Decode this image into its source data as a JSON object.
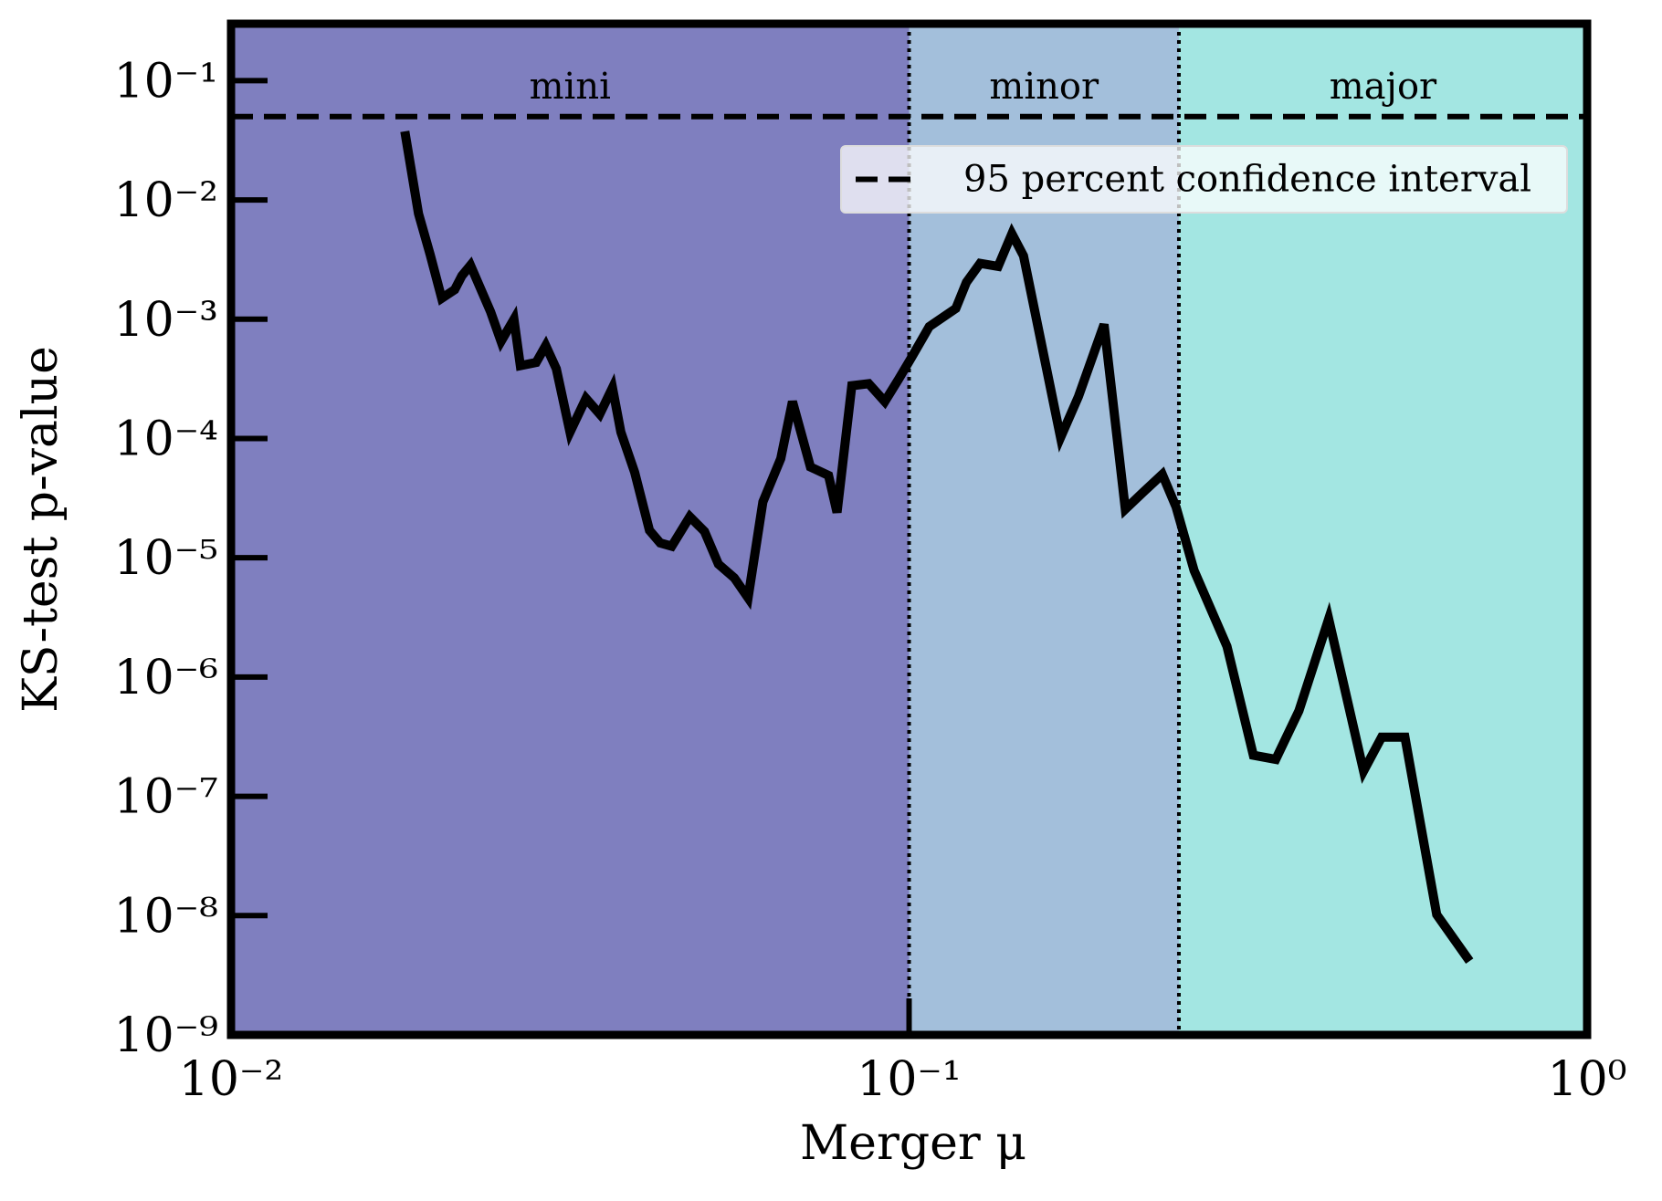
{
  "chart_data": {
    "type": "line",
    "xlabel": "Merger μ",
    "ylabel": "KS-test p-value",
    "xscale": "log",
    "yscale": "log",
    "xlim": [
      0.01,
      1
    ],
    "ylim": [
      1e-09,
      0.3
    ],
    "xticks": [
      {
        "value": 0.01,
        "label": "10⁻²"
      },
      {
        "value": 0.1,
        "label": "10⁻¹"
      },
      {
        "value": 1,
        "label": "10⁰"
      }
    ],
    "yticks": [
      {
        "value": 1e-09,
        "label": "10⁻⁹"
      },
      {
        "value": 1e-08,
        "label": "10⁻⁸"
      },
      {
        "value": 1e-07,
        "label": "10⁻⁷"
      },
      {
        "value": 1e-06,
        "label": "10⁻⁶"
      },
      {
        "value": 1e-05,
        "label": "10⁻⁵"
      },
      {
        "value": 0.0001,
        "label": "10⁻⁴"
      },
      {
        "value": 0.001,
        "label": "10⁻³"
      },
      {
        "value": 0.01,
        "label": "10⁻²"
      },
      {
        "value": 0.1,
        "label": "10⁻¹"
      }
    ],
    "regions": [
      {
        "label": "mini",
        "range": [
          0.01,
          0.1
        ],
        "color": "#7f7fbf"
      },
      {
        "label": "minor",
        "range": [
          0.1,
          0.25
        ],
        "color": "#a3bfdb"
      },
      {
        "label": "major",
        "range": [
          0.25,
          1
        ],
        "color": "#a3e6e2"
      }
    ],
    "hline": {
      "name": "95 percent confidence interval",
      "value": 0.05,
      "color": "#000000"
    },
    "legend": "upper right",
    "series": [
      {
        "color": "#000000",
        "x": [
          0.01804,
          0.0189,
          0.01967,
          0.02045,
          0.02137,
          0.0219,
          0.02255,
          0.02415,
          0.02502,
          0.02614,
          0.02671,
          0.02818,
          0.02911,
          0.03018,
          0.03162,
          0.03338,
          0.03498,
          0.03652,
          0.03758,
          0.03938,
          0.04141,
          0.04295,
          0.04467,
          0.0475,
          0.04993,
          0.05233,
          0.05524,
          0.05788,
          0.06086,
          0.06469,
          0.06731,
          0.07155,
          0.07606,
          0.07829,
          0.08233,
          0.0872,
          0.09207,
          0.09647,
          0.1007,
          0.1071,
          0.1172,
          0.1215,
          0.1273,
          0.1353,
          0.1418,
          0.1475,
          0.1673,
          0.1778,
          0.1939,
          0.2084,
          0.2214,
          0.2363,
          0.2476,
          0.2632,
          0.2943,
          0.3219,
          0.3473,
          0.3758,
          0.4158,
          0.468,
          0.4977,
          0.5387,
          0.6,
          0.6709
        ],
        "values": [
          0.0376,
          0.00767,
          0.00347,
          0.0015,
          0.00177,
          0.00231,
          0.00283,
          0.00115,
          0.000652,
          0.001,
          0.000408,
          0.000434,
          0.000601,
          0.000384,
          0.000113,
          0.000217,
          0.00016,
          0.000266,
          0.000113,
          5.21e-05,
          1.7e-05,
          1.33e-05,
          1.25e-05,
          2.21e-05,
          1.66e-05,
          8.85e-06,
          6.79e-06,
          4.61e-06,
          2.94e-05,
          6.79e-05,
          0.000204,
          5.77e-05,
          4.9e-05,
          2.4e-05,
          0.000277,
          0.000288,
          0.000204,
          0.000313,
          0.000471,
          0.000867,
          0.00123,
          0.00204,
          0.00294,
          0.00277,
          0.00521,
          0.0034,
          0.000102,
          0.000226,
          0.000904,
          2.55e-05,
          3.54e-05,
          5e-05,
          2.66e-05,
          7.83e-06,
          1.81e-06,
          2.21e-07,
          2.04e-07,
          5.21e-07,
          3.07e-06,
          1.63e-07,
          3.13e-07,
          3.13e-07,
          1.02e-08,
          4.16e-09
        ]
      }
    ]
  }
}
